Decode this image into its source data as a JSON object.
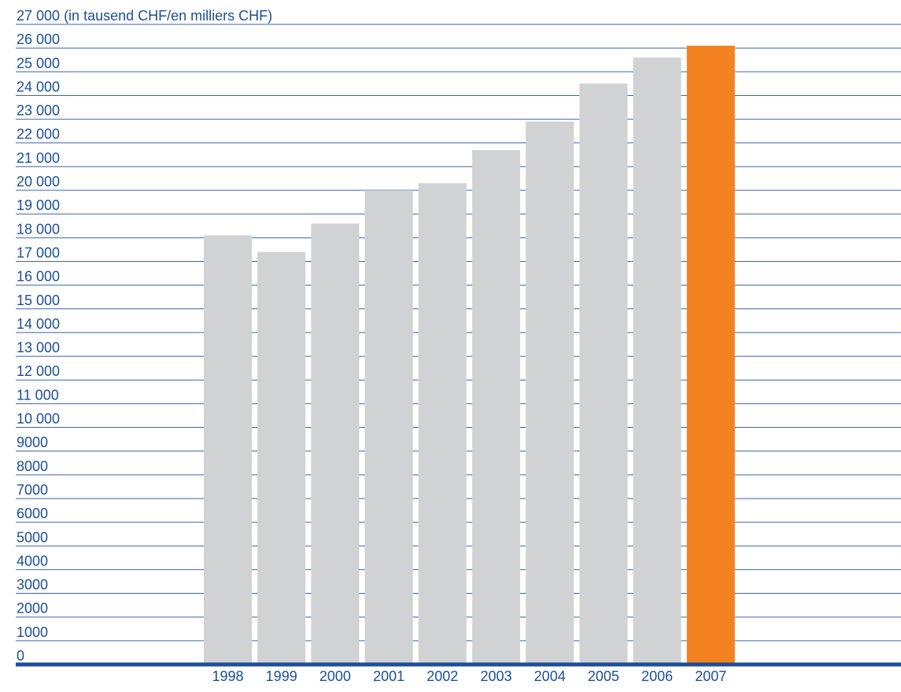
{
  "chart_data": {
    "type": "bar",
    "y_label": "(in tausend CHF/en milliers CHF)",
    "categories": [
      "1998",
      "1999",
      "2000",
      "2001",
      "2002",
      "2003",
      "2004",
      "2005",
      "2006",
      "2007"
    ],
    "values": [
      18100,
      17400,
      18600,
      20000,
      20300,
      21700,
      22900,
      24500,
      25600,
      26100
    ],
    "colors": [
      "#d1d2d4",
      "#d1d2d4",
      "#d1d2d4",
      "#d1d2d4",
      "#d1d2d4",
      "#d1d2d4",
      "#d1d2d4",
      "#d1d2d4",
      "#d1d2d4",
      "#f58220"
    ],
    "ylim": [
      0,
      27000
    ],
    "yticks": [
      0,
      1000,
      2000,
      3000,
      4000,
      5000,
      6000,
      7000,
      8000,
      9000,
      {
        "value": 10000,
        "label": "10 000"
      },
      {
        "value": 11000,
        "label": "11 000"
      },
      {
        "value": 12000,
        "label": "12 000"
      },
      {
        "value": 13000,
        "label": "13 000"
      },
      {
        "value": 14000,
        "label": "14 000"
      },
      {
        "value": 15000,
        "label": "15 000"
      },
      {
        "value": 16000,
        "label": "16 000"
      },
      {
        "value": 17000,
        "label": "17 000"
      },
      {
        "value": 18000,
        "label": "18 000"
      },
      {
        "value": 19000,
        "label": "19 000"
      },
      {
        "value": 20000,
        "label": "20 000"
      },
      {
        "value": 21000,
        "label": "21 000"
      },
      {
        "value": 22000,
        "label": "22 000"
      },
      {
        "value": 23000,
        "label": "23 000"
      },
      {
        "value": 24000,
        "label": "24 000"
      },
      {
        "value": 25000,
        "label": "25 000"
      },
      {
        "value": 26000,
        "label": "26 000"
      },
      {
        "value": 27000,
        "label": "27 000"
      }
    ],
    "grid": true
  }
}
